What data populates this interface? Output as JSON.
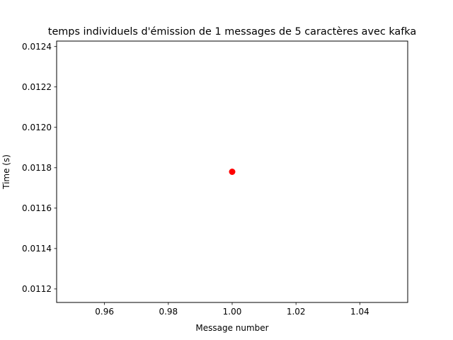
{
  "chart_data": {
    "type": "scatter",
    "title": "temps individuels d'émission de 1 messages de 5 caractères avec kafka",
    "xlabel": "Message number",
    "ylabel": "Time (s)",
    "xlim": [
      0.945,
      1.055
    ],
    "ylim": [
      0.011133,
      0.012427
    ],
    "xticks": [
      0.96,
      0.98,
      1.0,
      1.02,
      1.04
    ],
    "xtick_labels": [
      "0.96",
      "0.98",
      "1.00",
      "1.02",
      "1.04"
    ],
    "yticks": [
      0.0112,
      0.0114,
      0.0116,
      0.0118,
      0.012,
      0.0122,
      0.0124
    ],
    "ytick_labels": [
      "0.0112",
      "0.0114",
      "0.0116",
      "0.0118",
      "0.0120",
      "0.0122",
      "0.0124"
    ],
    "grid": false,
    "series": [
      {
        "x": [
          1.0
        ],
        "y": [
          0.01178
        ],
        "color": "#ff0000",
        "marker": "circle"
      }
    ]
  }
}
